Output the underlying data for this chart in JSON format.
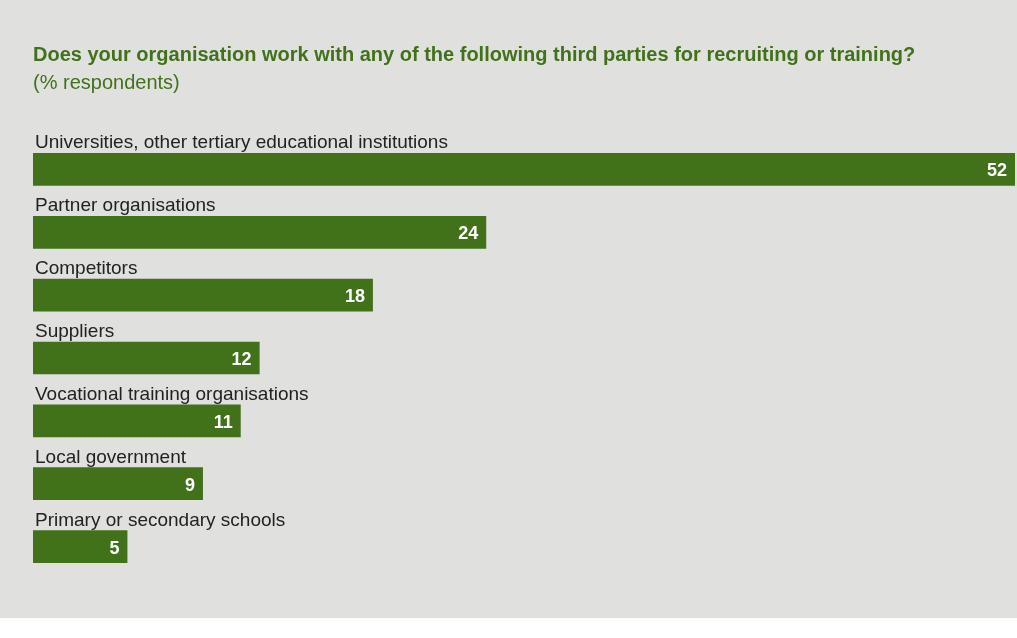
{
  "chart_data": {
    "type": "bar",
    "orientation": "horizontal",
    "title": "Does your organisation work with any of the following third parties for recruiting or training?",
    "subtitle": "(% respondents)",
    "categories": [
      "Universities, other tertiary educational institutions",
      "Partner organisations",
      "Competitors",
      "Suppliers",
      "Vocational training organisations",
      "Local government",
      "Primary or secondary schools"
    ],
    "values": [
      52,
      24,
      18,
      12,
      11,
      9,
      5
    ],
    "color": "#41721a",
    "data_labels": true
  }
}
